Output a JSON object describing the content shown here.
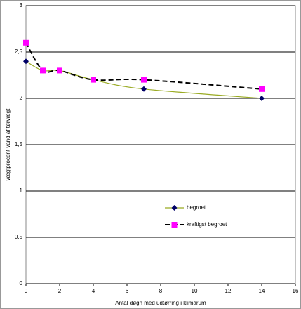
{
  "chart_data": {
    "type": "line",
    "x_label": "Antal døgn med udtørring i klimarum",
    "y_label": "vægtprocent vand af tørvægt",
    "x": [
      0,
      1,
      2,
      4,
      7,
      14
    ],
    "series": [
      {
        "name": "begroet",
        "values": [
          2.4,
          2.3,
          2.3,
          2.2,
          2.1,
          2.0
        ],
        "color": "#000066",
        "line_color": "#99aa22",
        "marker": "diamond",
        "dashed": false
      },
      {
        "name": "kraftigst begroet",
        "values": [
          2.6,
          2.3,
          2.3,
          2.2,
          2.2,
          2.1
        ],
        "color": "#ff00ff",
        "line_color": "#000000",
        "marker": "square",
        "dashed": true
      }
    ],
    "xlim": [
      0,
      16
    ],
    "xticks": [
      0,
      2,
      4,
      6,
      8,
      10,
      12,
      14,
      16
    ],
    "ylim": [
      0,
      3
    ],
    "yticks": [
      0,
      {
        "value": 0.5,
        "label": "0,5"
      },
      1,
      {
        "value": 1.5,
        "label": "1,5"
      },
      2,
      {
        "value": 2.5,
        "label": "2,5"
      },
      3
    ],
    "grid": true
  }
}
